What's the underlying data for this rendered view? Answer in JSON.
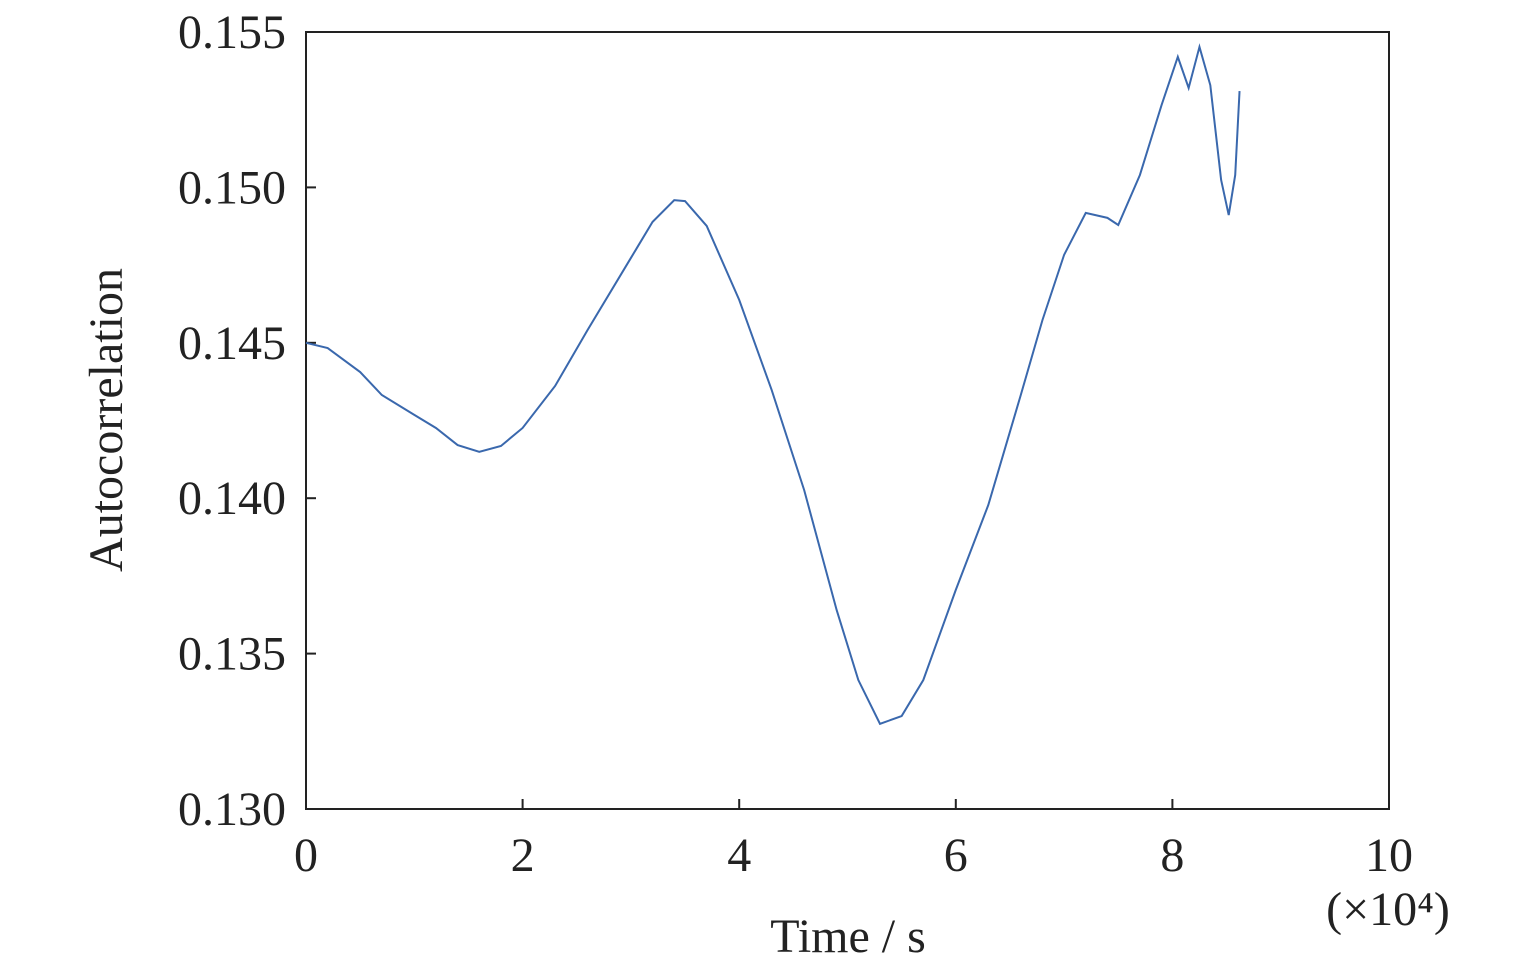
{
  "chart_data": {
    "type": "line",
    "x_label": "Time / s",
    "x_multiplier": "(×10⁴)",
    "y_label": "Autocorrelation",
    "xlim": [
      0,
      10
    ],
    "xticks": [
      0,
      2,
      4,
      6,
      8,
      10
    ],
    "ylim": [
      0.13,
      0.155
    ],
    "yticks": [
      {
        "value": 0.13,
        "label": "0.130"
      },
      0.135,
      {
        "value": 0.14,
        "label": "0.140"
      },
      0.145,
      {
        "value": 0.15,
        "label": "0.150"
      },
      0.155
    ],
    "grid": false,
    "series": [
      {
        "color": "#3a68ad",
        "x": [
          0,
          0.2,
          0.5,
          0.7,
          1.0,
          1.2,
          1.4,
          1.6,
          1.8,
          2.0,
          2.3,
          2.6,
          3.0,
          3.2,
          3.4,
          3.5,
          3.7,
          4.0,
          4.3,
          4.6,
          4.9,
          5.1,
          5.3,
          5.5,
          5.7,
          6.0,
          6.3,
          6.6,
          6.8,
          7.0,
          7.2,
          7.4,
          7.5,
          7.7,
          7.9,
          8.05,
          8.15,
          8.25,
          8.35,
          8.45,
          8.52,
          8.58,
          8.62
        ],
        "values": [
          0.145,
          0.14483,
          0.14406,
          0.14332,
          0.14268,
          0.14226,
          0.14171,
          0.14149,
          0.14168,
          0.14226,
          0.14361,
          0.14541,
          0.14773,
          0.14889,
          0.14959,
          0.14956,
          0.14876,
          0.14638,
          0.14348,
          0.14026,
          0.1364,
          0.13415,
          0.13274,
          0.13299,
          0.13415,
          0.13705,
          0.13978,
          0.14332,
          0.14573,
          0.14783,
          0.14918,
          0.14902,
          0.14879,
          0.1504,
          0.15265,
          0.1542,
          0.1532,
          0.15452,
          0.15329,
          0.15024,
          0.14911,
          0.1504,
          0.1531
        ]
      }
    ]
  }
}
